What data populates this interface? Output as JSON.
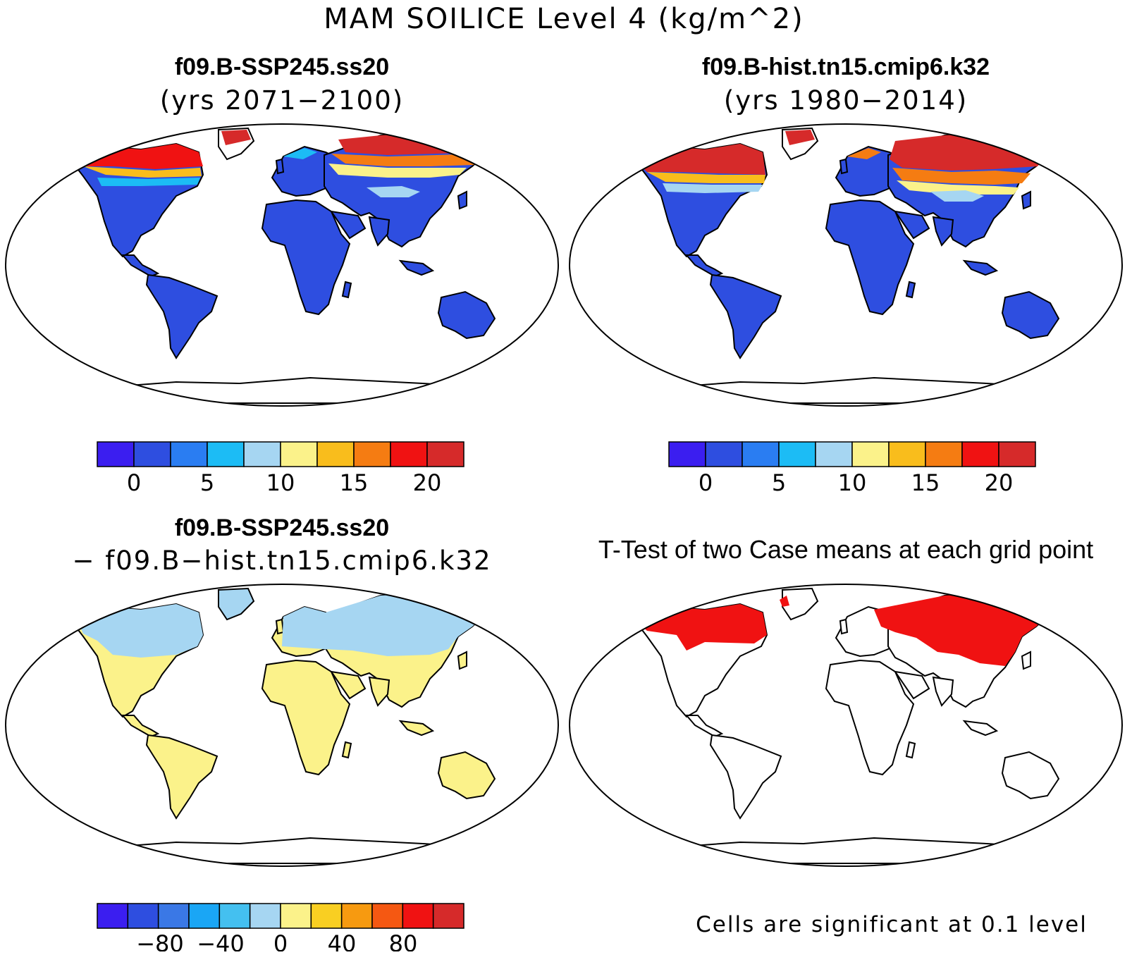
{
  "main_title": "MAM SOILICE Level 4 (kg/m^2)",
  "panels": [
    {
      "case": "f09.B-SSP245.ss20",
      "subtitle": "(yrs 2071−2100)",
      "colorbar_labels": [
        "0",
        "5",
        "10",
        "15",
        "20"
      ],
      "colorbar_colors": [
        "#3b1ef0",
        "#2e4ee0",
        "#2a7df2",
        "#1cbcf5",
        "#a6d6f2",
        "#fbf28a",
        "#f9bd1c",
        "#f57c12",
        "#f01212",
        "#d62a2a"
      ]
    },
    {
      "case": "f09.B-hist.tn15.cmip6.k32",
      "subtitle": "(yrs 1980−2014)",
      "colorbar_labels": [
        "0",
        "5",
        "10",
        "15",
        "20"
      ],
      "colorbar_colors": [
        "#3b1ef0",
        "#2e4ee0",
        "#2a7df2",
        "#1cbcf5",
        "#a6d6f2",
        "#fbf28a",
        "#f9bd1c",
        "#f57c12",
        "#f01212",
        "#d62a2a"
      ]
    },
    {
      "case": "f09.B-SSP245.ss20",
      "subtitle": "− f09.B−hist.tn15.cmip6.k32",
      "colorbar_labels": [
        "−80",
        "−40",
        "0",
        "40",
        "80"
      ],
      "colorbar_colors": [
        "#3b1ef0",
        "#2e4ee0",
        "#3a78e6",
        "#1aa6f5",
        "#44c0f0",
        "#a6d6f2",
        "#fbf28a",
        "#f9cf22",
        "#f79a10",
        "#f55812",
        "#f01212",
        "#d62a2a"
      ]
    },
    {
      "case": "T-Test of two Case means at each grid point",
      "footnote": "Cells are significant at 0.1 level"
    }
  ],
  "colors": {
    "land_low": "#2e4ee0",
    "diff_positive": "#fbf28a",
    "diff_negative": "#a6d6f2",
    "significant": "#f01212"
  }
}
